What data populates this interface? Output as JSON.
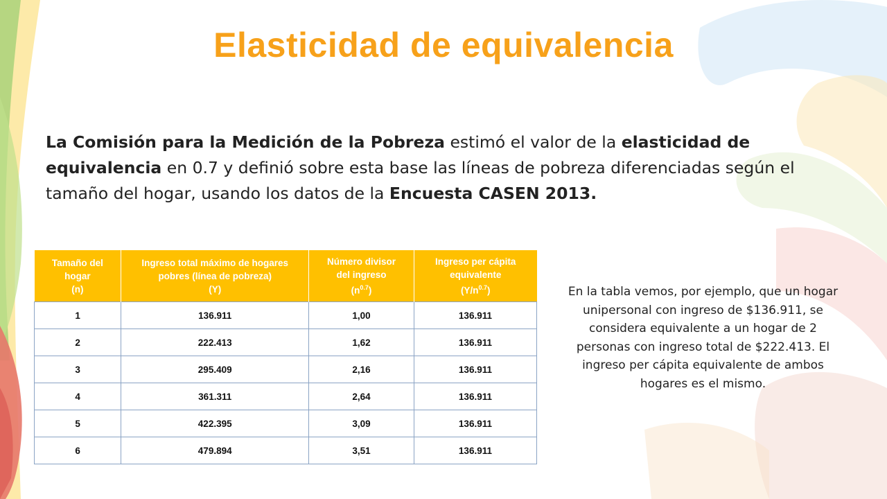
{
  "slide": {
    "title": "Elasticidad de equivalencia"
  },
  "intro": {
    "part1": "La Comisión para la Medición de la Pobreza",
    "part2": " estimó el valor de la ",
    "part3": "elasticidad de equivalencia",
    "part4": " en 0.7 y definió sobre esta base las líneas de pobreza diferenciadas según el tamaño del hogar, usando los datos de la ",
    "part5": "Encuesta CASEN 2013."
  },
  "table": {
    "headers": [
      {
        "l1": "Tamaño del",
        "l2": "hogar",
        "l3": "(n)",
        "sup": "",
        "tail": ""
      },
      {
        "l1": "Ingreso total máximo de hogares",
        "l2": "pobres (línea de pobreza)",
        "l3": "(Y)",
        "sup": "",
        "tail": ""
      },
      {
        "l1": "Número divisor",
        "l2": "del ingreso",
        "l3": "(n",
        "sup": "0.7",
        "tail": ")"
      },
      {
        "l1": "Ingreso per cápita",
        "l2": "equivalente",
        "l3": "(Y/n",
        "sup": "0.7",
        "tail": ")"
      }
    ],
    "rows": [
      [
        "1",
        "136.911",
        "1,00",
        "136.911"
      ],
      [
        "2",
        "222.413",
        "1,62",
        "136.911"
      ],
      [
        "3",
        "295.409",
        "2,16",
        "136.911"
      ],
      [
        "4",
        "361.311",
        "2,64",
        "136.911"
      ],
      [
        "5",
        "422.395",
        "3,09",
        "136.911"
      ],
      [
        "6",
        "479.894",
        "3,51",
        "136.911"
      ]
    ]
  },
  "note": {
    "text": "En la tabla vemos, por ejemplo, que un hogar unipersonal con ingreso de $136.911, se considera equivalente a un hogar de 2 personas con ingreso total de $222.413. El ingreso per cápita equivalente de ambos hogares es el mismo."
  },
  "colors": {
    "title": "#f7a11a",
    "header_bg": "#ffc000",
    "border": "#8aa3c4"
  }
}
